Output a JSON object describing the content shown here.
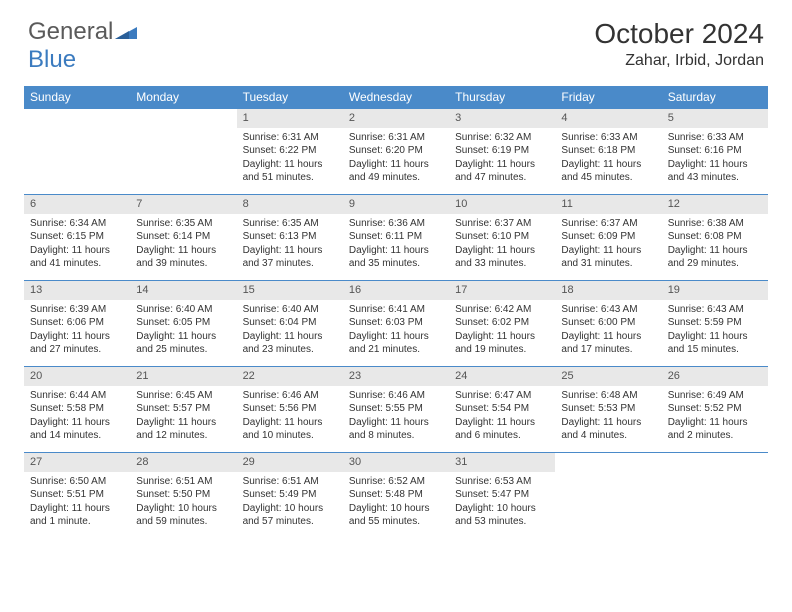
{
  "logo": {
    "general": "General",
    "blue": "Blue"
  },
  "title": "October 2024",
  "location": "Zahar, Irbid, Jordan",
  "colors": {
    "header_bg": "#4a8ac9",
    "header_text": "#ffffff",
    "daynum_bg": "#e8e8e8",
    "row_border": "#4a8ac9",
    "logo_gray": "#5a5a5a",
    "logo_blue": "#3b7bbf"
  },
  "weekdays": [
    "Sunday",
    "Monday",
    "Tuesday",
    "Wednesday",
    "Thursday",
    "Friday",
    "Saturday"
  ],
  "weeks": [
    [
      null,
      null,
      {
        "d": "1",
        "sr": "6:31 AM",
        "ss": "6:22 PM",
        "dl": "11 hours and 51 minutes."
      },
      {
        "d": "2",
        "sr": "6:31 AM",
        "ss": "6:20 PM",
        "dl": "11 hours and 49 minutes."
      },
      {
        "d": "3",
        "sr": "6:32 AM",
        "ss": "6:19 PM",
        "dl": "11 hours and 47 minutes."
      },
      {
        "d": "4",
        "sr": "6:33 AM",
        "ss": "6:18 PM",
        "dl": "11 hours and 45 minutes."
      },
      {
        "d": "5",
        "sr": "6:33 AM",
        "ss": "6:16 PM",
        "dl": "11 hours and 43 minutes."
      }
    ],
    [
      {
        "d": "6",
        "sr": "6:34 AM",
        "ss": "6:15 PM",
        "dl": "11 hours and 41 minutes."
      },
      {
        "d": "7",
        "sr": "6:35 AM",
        "ss": "6:14 PM",
        "dl": "11 hours and 39 minutes."
      },
      {
        "d": "8",
        "sr": "6:35 AM",
        "ss": "6:13 PM",
        "dl": "11 hours and 37 minutes."
      },
      {
        "d": "9",
        "sr": "6:36 AM",
        "ss": "6:11 PM",
        "dl": "11 hours and 35 minutes."
      },
      {
        "d": "10",
        "sr": "6:37 AM",
        "ss": "6:10 PM",
        "dl": "11 hours and 33 minutes."
      },
      {
        "d": "11",
        "sr": "6:37 AM",
        "ss": "6:09 PM",
        "dl": "11 hours and 31 minutes."
      },
      {
        "d": "12",
        "sr": "6:38 AM",
        "ss": "6:08 PM",
        "dl": "11 hours and 29 minutes."
      }
    ],
    [
      {
        "d": "13",
        "sr": "6:39 AM",
        "ss": "6:06 PM",
        "dl": "11 hours and 27 minutes."
      },
      {
        "d": "14",
        "sr": "6:40 AM",
        "ss": "6:05 PM",
        "dl": "11 hours and 25 minutes."
      },
      {
        "d": "15",
        "sr": "6:40 AM",
        "ss": "6:04 PM",
        "dl": "11 hours and 23 minutes."
      },
      {
        "d": "16",
        "sr": "6:41 AM",
        "ss": "6:03 PM",
        "dl": "11 hours and 21 minutes."
      },
      {
        "d": "17",
        "sr": "6:42 AM",
        "ss": "6:02 PM",
        "dl": "11 hours and 19 minutes."
      },
      {
        "d": "18",
        "sr": "6:43 AM",
        "ss": "6:00 PM",
        "dl": "11 hours and 17 minutes."
      },
      {
        "d": "19",
        "sr": "6:43 AM",
        "ss": "5:59 PM",
        "dl": "11 hours and 15 minutes."
      }
    ],
    [
      {
        "d": "20",
        "sr": "6:44 AM",
        "ss": "5:58 PM",
        "dl": "11 hours and 14 minutes."
      },
      {
        "d": "21",
        "sr": "6:45 AM",
        "ss": "5:57 PM",
        "dl": "11 hours and 12 minutes."
      },
      {
        "d": "22",
        "sr": "6:46 AM",
        "ss": "5:56 PM",
        "dl": "11 hours and 10 minutes."
      },
      {
        "d": "23",
        "sr": "6:46 AM",
        "ss": "5:55 PM",
        "dl": "11 hours and 8 minutes."
      },
      {
        "d": "24",
        "sr": "6:47 AM",
        "ss": "5:54 PM",
        "dl": "11 hours and 6 minutes."
      },
      {
        "d": "25",
        "sr": "6:48 AM",
        "ss": "5:53 PM",
        "dl": "11 hours and 4 minutes."
      },
      {
        "d": "26",
        "sr": "6:49 AM",
        "ss": "5:52 PM",
        "dl": "11 hours and 2 minutes."
      }
    ],
    [
      {
        "d": "27",
        "sr": "6:50 AM",
        "ss": "5:51 PM",
        "dl": "11 hours and 1 minute."
      },
      {
        "d": "28",
        "sr": "6:51 AM",
        "ss": "5:50 PM",
        "dl": "10 hours and 59 minutes."
      },
      {
        "d": "29",
        "sr": "6:51 AM",
        "ss": "5:49 PM",
        "dl": "10 hours and 57 minutes."
      },
      {
        "d": "30",
        "sr": "6:52 AM",
        "ss": "5:48 PM",
        "dl": "10 hours and 55 minutes."
      },
      {
        "d": "31",
        "sr": "6:53 AM",
        "ss": "5:47 PM",
        "dl": "10 hours and 53 minutes."
      },
      null,
      null
    ]
  ],
  "labels": {
    "sunrise": "Sunrise:",
    "sunset": "Sunset:",
    "daylight": "Daylight:"
  }
}
